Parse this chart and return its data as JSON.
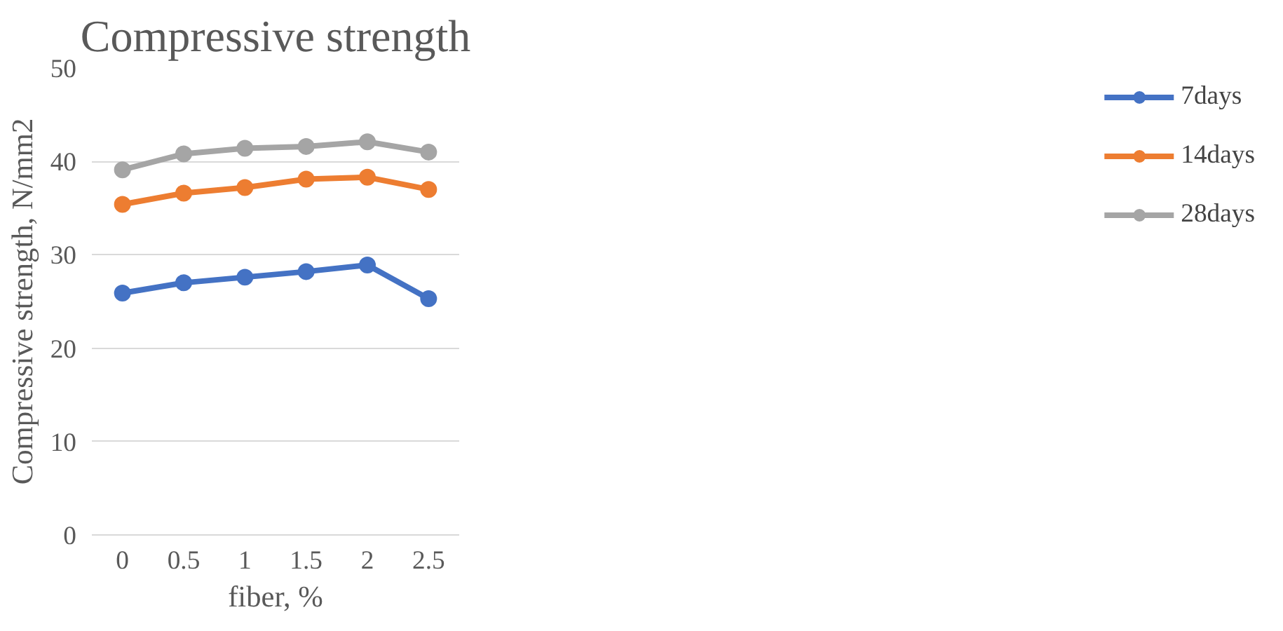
{
  "chart_data": {
    "type": "line",
    "title": "Compressive strength",
    "xlabel": "fiber, %",
    "ylabel": "Compressive strength, N/mm2",
    "categories": [
      "0",
      "0.5",
      "1",
      "1.5",
      "2",
      "2.5"
    ],
    "series": [
      {
        "name": "7days",
        "color": "#4472c4",
        "values": [
          25.9,
          27.0,
          27.6,
          28.2,
          28.9,
          25.3
        ]
      },
      {
        "name": "14days",
        "color": "#ed7d31",
        "values": [
          35.4,
          36.6,
          37.2,
          38.1,
          38.3,
          37.0
        ]
      },
      {
        "name": "28days",
        "color": "#a5a5a5",
        "values": [
          39.1,
          40.8,
          41.4,
          41.6,
          42.1,
          41.0
        ]
      }
    ],
    "ylim": [
      0,
      50
    ],
    "yticks": [
      0,
      10,
      20,
      30,
      40,
      50
    ],
    "grid": "y",
    "legend": "right",
    "marker": "circle",
    "line_style": "solid"
  }
}
